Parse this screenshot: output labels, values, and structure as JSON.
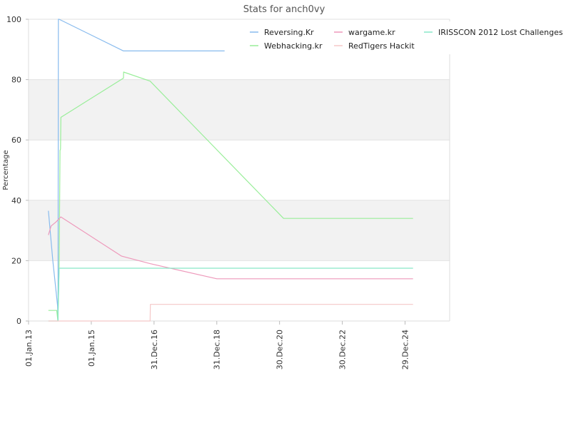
{
  "chart_data": {
    "type": "line",
    "title": "Stats for anch0vy",
    "ylabel": "Percentage",
    "xlabel": "",
    "ylim": [
      0,
      100
    ],
    "yticks": [
      0,
      20,
      40,
      60,
      80,
      100
    ],
    "xlim": [
      "2013-01-01",
      "2026-06-01"
    ],
    "xticks": [
      {
        "date": "2013-01-01",
        "label": "01.Jan.13"
      },
      {
        "date": "2015-01-01",
        "label": "01.Jan.15"
      },
      {
        "date": "2016-12-31",
        "label": "31.Dec.16"
      },
      {
        "date": "2018-12-31",
        "label": "31.Dec.18"
      },
      {
        "date": "2020-12-30",
        "label": "30.Dec.20"
      },
      {
        "date": "2022-12-30",
        "label": "30.Dec.22"
      },
      {
        "date": "2024-12-29",
        "label": "29.Dec.24"
      }
    ],
    "grid": true,
    "banded_background": true,
    "legend_position": "top-right",
    "series": [
      {
        "name": "Reversing.Kr",
        "color": "#88bbee",
        "points": [
          [
            "2013-08-20",
            36.5
          ],
          [
            "2013-08-25",
            35
          ],
          [
            "2013-10-10",
            20
          ],
          [
            "2013-12-05",
            5
          ],
          [
            "2013-12-10",
            0
          ],
          [
            "2013-12-14",
            100
          ],
          [
            "2013-12-22",
            100
          ],
          [
            "2016-01-10",
            89.5
          ],
          [
            "2019-04-01",
            89.5
          ]
        ]
      },
      {
        "name": "Webhacking.kr",
        "color": "#99ee99",
        "points": [
          [
            "2013-08-20",
            3.5
          ],
          [
            "2013-11-25",
            3.5
          ],
          [
            "2013-12-08",
            0
          ],
          [
            "2013-12-22",
            17
          ],
          [
            "2014-01-02",
            56.5
          ],
          [
            "2014-01-08",
            57
          ],
          [
            "2014-01-12",
            67.5
          ],
          [
            "2016-01-10",
            80.5
          ],
          [
            "2016-01-12",
            82.5
          ],
          [
            "2016-11-15",
            79.5
          ],
          [
            "2021-02-15",
            34
          ],
          [
            "2025-04-01",
            34
          ]
        ]
      },
      {
        "name": "wargame.kr",
        "color": "#ee99bb",
        "points": [
          [
            "2013-08-20",
            28.5
          ],
          [
            "2013-09-20",
            31.5
          ],
          [
            "2013-11-15",
            32.8
          ],
          [
            "2014-01-12",
            34.5
          ],
          [
            "2015-12-20",
            21.5
          ],
          [
            "2016-11-15",
            19
          ],
          [
            "2018-12-31",
            14
          ],
          [
            "2025-04-01",
            14
          ]
        ]
      },
      {
        "name": "IRISSCON 2012 Lost Challenges",
        "color": "#88e8c8",
        "points": [
          [
            "2013-08-20",
            0
          ],
          [
            "2013-12-08",
            0
          ],
          [
            "2013-12-22",
            17.5
          ],
          [
            "2025-04-01",
            17.5
          ]
        ]
      },
      {
        "name": "RedTigers Hackit",
        "color": "#f5c8c8",
        "points": [
          [
            "2013-08-20",
            0
          ],
          [
            "2016-11-15",
            0
          ],
          [
            "2016-11-18",
            5.5
          ],
          [
            "2025-04-01",
            5.5
          ]
        ]
      }
    ],
    "legend_order": [
      "Reversing.Kr",
      "wargame.kr",
      "IRISSCON 2012 Lost Challenges",
      "Webhacking.kr",
      "RedTigers Hackit"
    ]
  }
}
